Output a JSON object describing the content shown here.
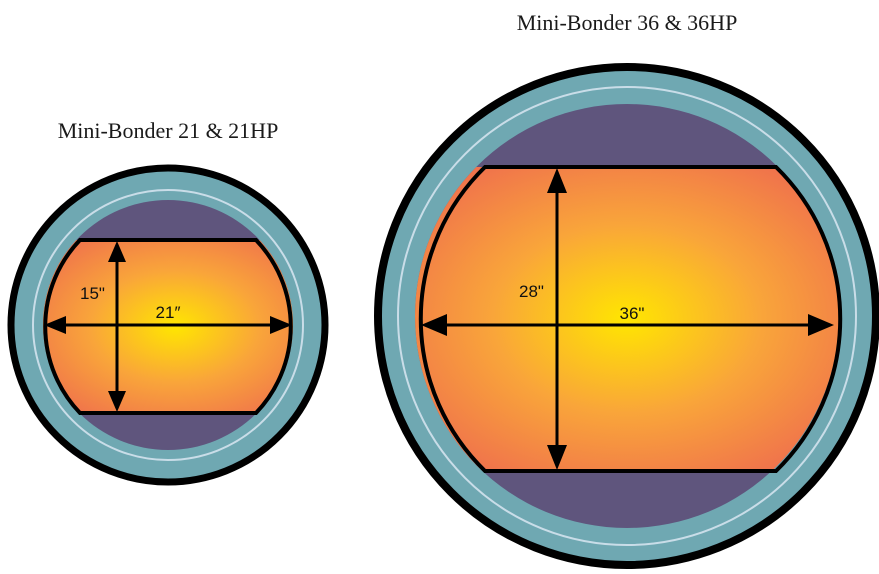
{
  "colors": {
    "outer_ring": "#6fa8b2",
    "ring_highlight": "#c9dde8",
    "cap_fill": "#5f557d",
    "platen_center": "#ffe600",
    "platen_mid": "#f9a53a",
    "platen_edge": "#ef6f4d",
    "outline": "#000000"
  },
  "models": [
    {
      "title": "Mini-Bonder 21 & 21HP",
      "width_label": "21″",
      "height_label": "15\""
    },
    {
      "title": "Mini-Bonder 36 & 36HP",
      "width_label": "36\"",
      "height_label": "28\""
    }
  ]
}
